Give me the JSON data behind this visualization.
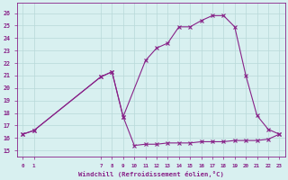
{
  "upper_x": [
    0,
    1,
    7,
    8,
    9,
    11,
    12,
    13,
    14,
    15,
    16,
    17,
    18,
    19,
    20,
    21,
    22,
    23
  ],
  "upper_y": [
    16.3,
    16.6,
    20.9,
    21.3,
    17.7,
    22.2,
    23.2,
    23.6,
    24.9,
    24.9,
    25.4,
    25.8,
    25.8,
    24.9,
    21.0,
    17.8,
    16.7,
    16.3
  ],
  "lower_x": [
    0,
    1,
    7,
    8,
    9,
    10,
    11,
    12,
    13,
    14,
    15,
    16,
    17,
    18,
    19,
    20,
    21,
    22,
    23
  ],
  "lower_y": [
    16.3,
    16.6,
    20.9,
    21.3,
    17.7,
    15.4,
    15.5,
    15.5,
    15.6,
    15.6,
    15.6,
    15.7,
    15.7,
    15.7,
    15.8,
    15.8,
    15.8,
    15.9,
    16.3
  ],
  "line_color": "#882288",
  "bg_color": "#d8f0f0",
  "grid_color": "#b8d8d8",
  "xlabel": "Windchill (Refroidissement éolien,°C)",
  "xticks": [
    0,
    1,
    7,
    8,
    9,
    10,
    11,
    12,
    13,
    14,
    15,
    16,
    17,
    18,
    19,
    20,
    21,
    22,
    23
  ],
  "yticks": [
    15,
    16,
    17,
    18,
    19,
    20,
    21,
    22,
    23,
    24,
    25,
    26
  ],
  "ylim": [
    14.5,
    26.8
  ],
  "xlim": [
    -0.5,
    23.5
  ]
}
